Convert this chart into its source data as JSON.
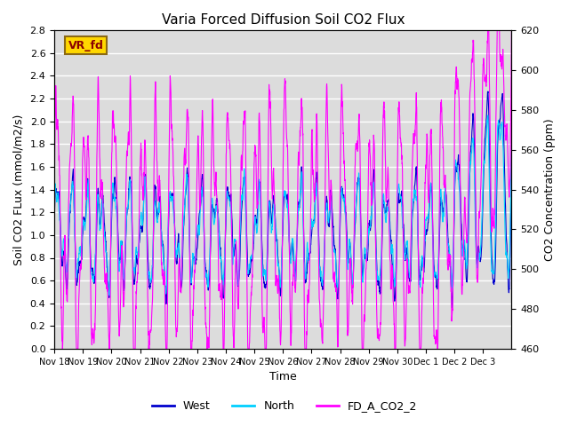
{
  "title": "Varia Forced Diffusion Soil CO2 Flux",
  "ylabel_left": "Soil CO2 FLux (mmol/m2/s)",
  "ylabel_right": "CO2 Concentration (ppm)",
  "xlabel": "Time",
  "ylim_left": [
    0.0,
    2.8
  ],
  "ylim_right": [
    460,
    620
  ],
  "yticks_left": [
    0.0,
    0.2,
    0.4,
    0.6,
    0.8,
    1.0,
    1.2,
    1.4,
    1.6,
    1.8,
    2.0,
    2.2,
    2.4,
    2.6,
    2.8
  ],
  "yticks_right": [
    460,
    480,
    500,
    520,
    540,
    560,
    580,
    600,
    620
  ],
  "color_west": "#0000CD",
  "color_north": "#00CFFF",
  "color_co2": "#FF00FF",
  "label_west": "West",
  "label_north": "North",
  "label_co2": "FD_A_CO2_2",
  "annotation_text": "VR_fd",
  "annotation_bg": "#FFD700",
  "annotation_border": "#8B6914",
  "bg_color": "#DCDCDC",
  "linewidth": 0.8,
  "xtick_labels": [
    "Nov 18",
    "Nov 19",
    "Nov 20",
    "Nov 21",
    "Nov 22",
    "Nov 23",
    "Nov 24",
    "Nov 25",
    "Nov 26",
    "Nov 27",
    "Nov 28",
    "Nov 29",
    "Nov 30",
    "Dec 1",
    "Dec 2",
    "Dec 3"
  ]
}
